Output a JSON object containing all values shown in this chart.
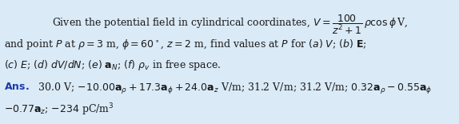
{
  "background_color": "#daeaf7",
  "fig_width": 5.74,
  "fig_height": 1.55,
  "dpi": 100,
  "font_size": 9.0,
  "ans_color": "#1a3aaa",
  "text_color": "#1a1a1a",
  "line1": "Given the potential field in cylindrical coordinates, $V = \\dfrac{100}{z^2+1}\\,\\rho\\cos\\phi\\,$V,",
  "line2": "and point $P$ at $\\rho = 3$ m, $\\phi = 60^\\circ$, $z = 2$ m, find values at $P$ for $(a)$ $V$; $(b)$ $\\mathbf{E}$;",
  "line3": "$(c)$ $E$; $(d)$ $dV/dN$; $(e)$ $\\mathbf{a}_N$; $(f)$ $\\rho_v$ in free space.",
  "ans_bold": "Ans.",
  "ans_line1": " 30.0 V; $-10.00\\mathbf{a}_\\rho + 17.3\\mathbf{a}_\\phi + 24.0\\mathbf{a}_z$ V/m; 31.2 V/m; 31.2 V/m; $0.32\\mathbf{a}_\\rho - 0.55\\mathbf{a}_\\phi$",
  "ans_line2": "$- 0.77\\mathbf{a}_z$; $-234$ pC/m$^3$"
}
